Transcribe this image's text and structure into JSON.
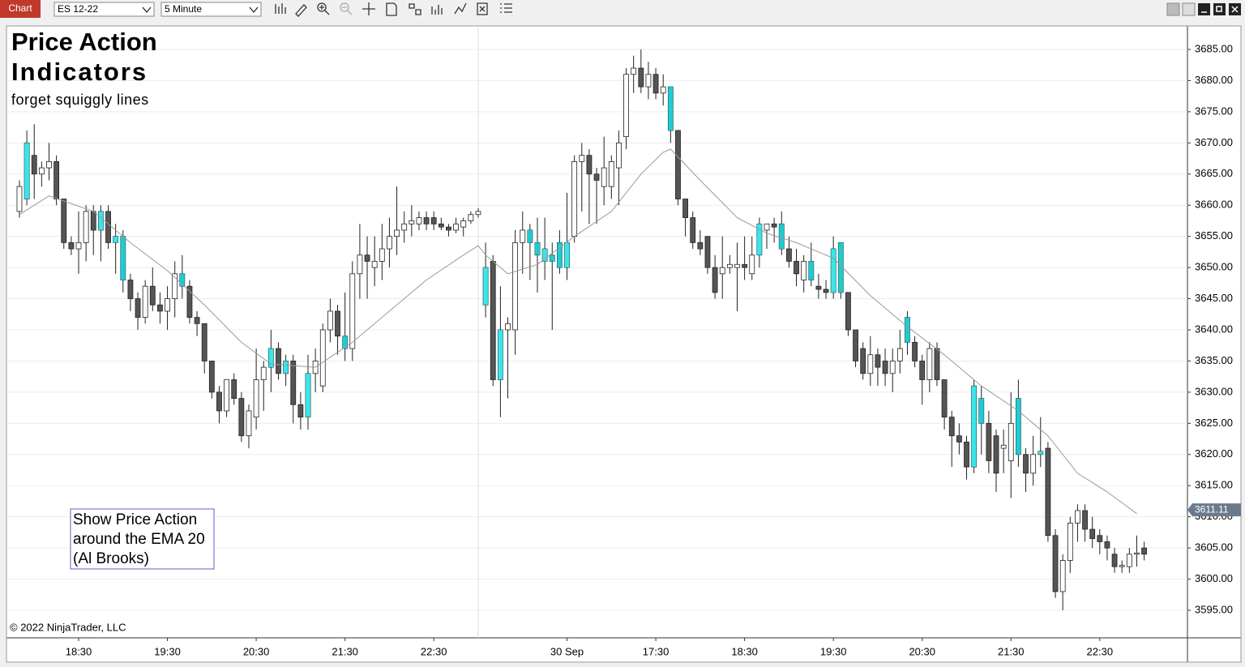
{
  "toolbar": {
    "tab": "Chart",
    "instrument": "ES 12-22",
    "interval": "5 Minute"
  },
  "chart_data": {
    "type": "candlestick",
    "title": "Price Action",
    "title2": "Indicators",
    "subtitle": "forget squiggly lines",
    "annotation": [
      "Show Price Action",
      "around the EMA 20",
      "(Al Brooks)"
    ],
    "copyright": "© 2022 NinjaTrader, LLC",
    "up_color": "#ffffff",
    "down_color": "#555555",
    "highlight_color": "#19e0e6",
    "ema_color": "#999999",
    "grid": true,
    "ohlc": [
      [
        3659,
        3664,
        3658,
        3663
      ],
      [
        3661,
        3672,
        3660,
        3670
      ],
      [
        3668,
        3673,
        3661,
        3665
      ],
      [
        3665,
        3667,
        3663,
        3666
      ],
      [
        3666,
        3670,
        3664,
        3667
      ],
      [
        3667,
        3668,
        3660,
        3661
      ],
      [
        3661,
        3661,
        3653,
        3654
      ],
      [
        3654,
        3655,
        3652,
        3653
      ],
      [
        3653,
        3659,
        3649,
        3654
      ],
      [
        3654,
        3660,
        3651,
        3659
      ],
      [
        3659,
        3660,
        3652,
        3656
      ],
      [
        3656,
        3660,
        3651,
        3659
      ],
      [
        3659,
        3660,
        3653,
        3654
      ],
      [
        3654,
        3657,
        3649,
        3655
      ],
      [
        3655,
        3656,
        3646,
        3648
      ],
      [
        3648,
        3649,
        3643,
        3645
      ],
      [
        3645,
        3646,
        3640,
        3642
      ],
      [
        3642,
        3648,
        3641,
        3647
      ],
      [
        3647,
        3650,
        3643,
        3644
      ],
      [
        3644,
        3646,
        3641,
        3643
      ],
      [
        3643,
        3647,
        3640,
        3645
      ],
      [
        3645,
        3651,
        3642,
        3649
      ],
      [
        3649,
        3652,
        3645,
        3647
      ],
      [
        3647,
        3648,
        3641,
        3642
      ],
      [
        3642,
        3643,
        3639,
        3641
      ],
      [
        3641,
        3641,
        3633,
        3635
      ],
      [
        3635,
        3635,
        3629,
        3630
      ],
      [
        3630,
        3631,
        3625,
        3627
      ],
      [
        3627,
        3632,
        3626,
        3632
      ],
      [
        3632,
        3633,
        3628,
        3629
      ],
      [
        3629,
        3630,
        3622,
        3623
      ],
      [
        3623,
        3628,
        3621,
        3627
      ],
      [
        3626,
        3637,
        3624,
        3632
      ],
      [
        3632,
        3635,
        3627,
        3634
      ],
      [
        3634,
        3640,
        3630,
        3637
      ],
      [
        3637,
        3638,
        3632,
        3633
      ],
      [
        3633,
        3636,
        3631,
        3635
      ],
      [
        3635,
        3636,
        3625,
        3628
      ],
      [
        3628,
        3630,
        3624,
        3626
      ],
      [
        3626,
        3636,
        3624,
        3633
      ],
      [
        3633,
        3637,
        3630,
        3635
      ],
      [
        3631,
        3641,
        3630,
        3640
      ],
      [
        3640,
        3645,
        3638,
        3643
      ],
      [
        3643,
        3644,
        3636,
        3639
      ],
      [
        3639,
        3646,
        3635,
        3637
      ],
      [
        3637,
        3651,
        3635,
        3649
      ],
      [
        3649,
        3657,
        3645,
        3652
      ],
      [
        3652,
        3655,
        3645,
        3651
      ],
      [
        3650,
        3655,
        3647,
        3651
      ],
      [
        3651,
        3657,
        3648,
        3653
      ],
      [
        3653,
        3658,
        3650,
        3655
      ],
      [
        3655,
        3663,
        3652,
        3656
      ],
      [
        3656,
        3659,
        3654,
        3657
      ],
      [
        3657,
        3660,
        3655,
        3657.5
      ],
      [
        3657,
        3659,
        3656,
        3658
      ],
      [
        3658,
        3659,
        3656,
        3657
      ],
      [
        3658,
        3659,
        3656,
        3657
      ],
      [
        3657,
        3658,
        3656,
        3656.5
      ],
      [
        3656.5,
        3657,
        3655,
        3656
      ],
      [
        3656,
        3658,
        3655.5,
        3657
      ],
      [
        3656.5,
        3658,
        3655,
        3657.5
      ],
      [
        3657.5,
        3659,
        3657,
        3658.5
      ],
      [
        3658.5,
        3659.5,
        3658,
        3659
      ],
      [
        3644,
        3654,
        3642,
        3650
      ],
      [
        3651,
        3652,
        3631,
        3632
      ],
      [
        3632,
        3647,
        3626,
        3640
      ],
      [
        3640,
        3642,
        3629,
        3641
      ],
      [
        3640,
        3656,
        3636,
        3654
      ],
      [
        3654,
        3659,
        3649,
        3656
      ],
      [
        3656,
        3657,
        3648,
        3654
      ],
      [
        3654,
        3658,
        3646,
        3652
      ],
      [
        3651,
        3658,
        3648,
        3653
      ],
      [
        3652,
        3654,
        3640,
        3651
      ],
      [
        3654,
        3656,
        3649,
        3650
      ],
      [
        3650,
        3662,
        3648,
        3654
      ],
      [
        3655,
        3668,
        3654,
        3667
      ],
      [
        3667,
        3670,
        3659,
        3668
      ],
      [
        3668,
        3669,
        3657,
        3665
      ],
      [
        3665,
        3666,
        3657,
        3664
      ],
      [
        3663,
        3671,
        3660,
        3666
      ],
      [
        3663,
        3668,
        3661,
        3667
      ],
      [
        3666,
        3672,
        3660,
        3670
      ],
      [
        3671,
        3682,
        3669,
        3681
      ],
      [
        3681,
        3684,
        3678,
        3682
      ],
      [
        3682,
        3685,
        3678,
        3679
      ],
      [
        3679,
        3683,
        3677,
        3681
      ],
      [
        3681,
        3682,
        3677,
        3678
      ],
      [
        3678,
        3681,
        3676,
        3679
      ],
      [
        3679,
        3679,
        3670,
        3672
      ],
      [
        3672,
        3672,
        3660,
        3661
      ],
      [
        3661,
        3661,
        3655,
        3658
      ],
      [
        3658,
        3659,
        3653,
        3654
      ],
      [
        3654,
        3656,
        3652,
        3653
      ],
      [
        3655,
        3655,
        3649,
        3650
      ],
      [
        3650,
        3652,
        3645,
        3646
      ],
      [
        3649,
        3655,
        3645,
        3650
      ],
      [
        3650,
        3652,
        3649,
        3650.5
      ],
      [
        3650,
        3654,
        3643,
        3650.5
      ],
      [
        3650.5,
        3655,
        3648,
        3650
      ],
      [
        3649,
        3655,
        3648,
        3652
      ],
      [
        3652,
        3658,
        3650,
        3657
      ],
      [
        3656,
        3657,
        3653,
        3657
      ],
      [
        3657,
        3658,
        3654,
        3656.5
      ],
      [
        3657,
        3659,
        3652,
        3653
      ],
      [
        3653,
        3655,
        3650,
        3651
      ],
      [
        3651,
        3653,
        3647,
        3649
      ],
      [
        3648,
        3652,
        3646,
        3651
      ],
      [
        3651,
        3654,
        3647,
        3648
      ],
      [
        3647,
        3649,
        3645,
        3646.5
      ],
      [
        3646.5,
        3648,
        3645,
        3646
      ],
      [
        3646,
        3655,
        3645,
        3653
      ],
      [
        3654,
        3654,
        3645,
        3646
      ],
      [
        3646,
        3646,
        3639,
        3640
      ],
      [
        3640,
        3640,
        3634,
        3635
      ],
      [
        3637,
        3638,
        3632,
        3633
      ],
      [
        3633,
        3639,
        3631,
        3636
      ],
      [
        3636,
        3637,
        3631,
        3634
      ],
      [
        3635,
        3637,
        3631,
        3633
      ],
      [
        3633,
        3637,
        3630,
        3635
      ],
      [
        3635,
        3640,
        3633,
        3637
      ],
      [
        3642,
        3643,
        3636,
        3638
      ],
      [
        3638,
        3639,
        3634,
        3635
      ],
      [
        3635,
        3636,
        3628,
        3632
      ],
      [
        3632,
        3638,
        3630,
        3637
      ],
      [
        3637,
        3638,
        3631,
        3632
      ],
      [
        3632,
        3632,
        3624,
        3626
      ],
      [
        3626,
        3627,
        3618,
        3623
      ],
      [
        3623,
        3625,
        3620,
        3622
      ],
      [
        3622,
        3623,
        3616,
        3618
      ],
      [
        3618,
        3632,
        3617,
        3631
      ],
      [
        3629,
        3631,
        3620,
        3625
      ],
      [
        3625,
        3627,
        3617,
        3619
      ],
      [
        3623,
        3624,
        3614,
        3617
      ],
      [
        3621,
        3624,
        3617,
        3621.5
      ],
      [
        3619,
        3630,
        3613,
        3625
      ],
      [
        3629,
        3632,
        3618,
        3620
      ],
      [
        3620,
        3621,
        3614,
        3617
      ],
      [
        3617,
        3623,
        3615,
        3620
      ],
      [
        3620,
        3626,
        3618,
        3620.5
      ],
      [
        3621,
        3622,
        3606,
        3607
      ],
      [
        3607,
        3608,
        3597,
        3598
      ],
      [
        3598,
        3604,
        3595,
        3603
      ],
      [
        3603,
        3610,
        3601,
        3609
      ],
      [
        3609,
        3612,
        3606,
        3611
      ],
      [
        3611,
        3612,
        3606,
        3608
      ],
      [
        3608,
        3610,
        3605,
        3606.5
      ],
      [
        3607,
        3608,
        3604,
        3606
      ],
      [
        3606,
        3607,
        3603,
        3605
      ],
      [
        3604,
        3605,
        3601,
        3602
      ],
      [
        3602,
        3603,
        3601,
        3602.2
      ],
      [
        3602,
        3605,
        3601,
        3604
      ],
      [
        3604,
        3607,
        3602,
        3604.2
      ],
      [
        3605,
        3606,
        3603,
        3604
      ]
    ],
    "highlight": [
      1,
      11,
      13,
      14,
      22,
      34,
      36,
      39,
      44,
      63,
      65,
      69,
      70,
      71,
      72,
      73,
      74,
      88,
      100,
      103,
      107,
      110,
      111,
      120,
      129,
      130,
      135,
      138
    ],
    "ema_x": [
      0,
      4,
      10,
      15,
      20,
      25,
      30,
      34,
      40,
      45,
      50,
      55,
      60,
      62,
      63,
      66,
      70,
      75,
      80,
      84,
      87,
      88,
      92,
      97,
      101,
      105,
      110,
      115,
      120,
      125,
      130,
      135,
      139,
      143,
      147,
      151
    ],
    "ema": [
      3658.5,
      3661.5,
      3659,
      3654,
      3649.5,
      3644,
      3638,
      3634.5,
      3634,
      3638,
      3643,
      3648,
      3652,
      3653.5,
      3652,
      3649,
      3650.5,
      3655,
      3659,
      3665,
      3668.5,
      3669,
      3664,
      3658,
      3655.5,
      3654,
      3651.5,
      3645.5,
      3640.5,
      3636,
      3631,
      3627,
      3623,
      3617,
      3614,
      3610.5
    ],
    "price_marker": 3611.11,
    "xlim": [
      -1.75,
      157.85
    ],
    "xticks": [
      {
        "value": 8,
        "label": "18:30"
      },
      {
        "value": 20,
        "label": "19:30"
      },
      {
        "value": 32,
        "label": "20:30"
      },
      {
        "value": 44,
        "label": "21:30"
      },
      {
        "value": 56,
        "label": "22:30"
      },
      {
        "value": 74,
        "label": "30 Sep"
      },
      {
        "value": 86,
        "label": "17:30"
      },
      {
        "value": 98,
        "label": "18:30"
      },
      {
        "value": 110,
        "label": "19:30"
      },
      {
        "value": 122,
        "label": "20:30"
      },
      {
        "value": 134,
        "label": "21:30"
      },
      {
        "value": 146,
        "label": "22:30"
      }
    ],
    "ylim": [
      3590.58,
      3688.77
    ],
    "yticks": [
      {
        "value": 3595,
        "label": "3595.00"
      },
      {
        "value": 3600,
        "label": "3600.00"
      },
      {
        "value": 3605,
        "label": "3605.00"
      },
      {
        "value": 3610,
        "label": "3610.00"
      },
      {
        "value": 3615,
        "label": "3615.00"
      },
      {
        "value": 3620,
        "label": "3620.00"
      },
      {
        "value": 3625,
        "label": "3625.00"
      },
      {
        "value": 3630,
        "label": "3630.00"
      },
      {
        "value": 3635,
        "label": "3635.00"
      },
      {
        "value": 3640,
        "label": "3640.00"
      },
      {
        "value": 3645,
        "label": "3645.00"
      },
      {
        "value": 3650,
        "label": "3650.00"
      },
      {
        "value": 3655,
        "label": "3655.00"
      },
      {
        "value": 3660,
        "label": "3660.00"
      },
      {
        "value": 3665,
        "label": "3665.00"
      },
      {
        "value": 3670,
        "label": "3670.00"
      },
      {
        "value": 3675,
        "label": "3675.00"
      },
      {
        "value": 3680,
        "label": "3680.00"
      },
      {
        "value": 3685,
        "label": "3685.00"
      }
    ]
  }
}
